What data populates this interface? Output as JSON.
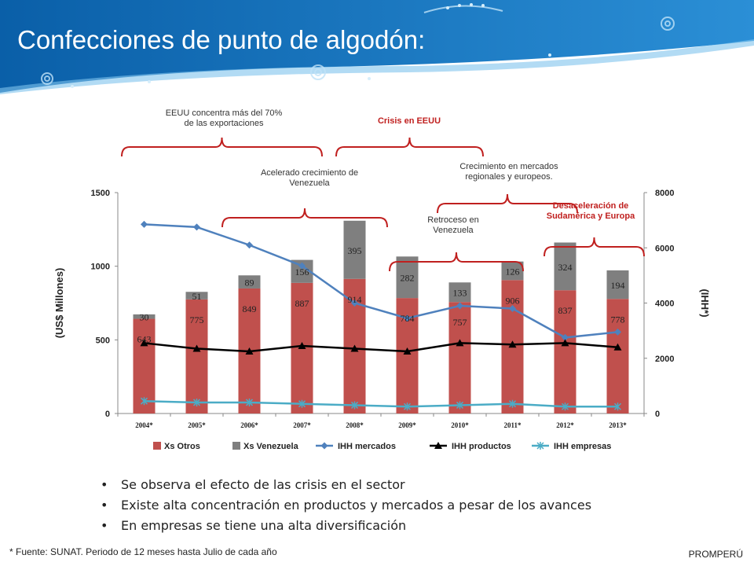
{
  "header": {
    "title": "Confecciones de punto de algodón:"
  },
  "chart_data": {
    "type": "bar",
    "categories": [
      "2004*",
      "2005*",
      "2006*",
      "2007*",
      "2008*",
      "2009*",
      "2010*",
      "2011*",
      "2012*",
      "2013*"
    ],
    "series": [
      {
        "name": "Xs Otros",
        "kind": "bar",
        "axis": "left",
        "values": [
          643,
          775,
          849,
          887,
          914,
          784,
          757,
          906,
          837,
          778
        ]
      },
      {
        "name": "Xs Venezuela",
        "kind": "bar",
        "axis": "left",
        "values": [
          30,
          51,
          89,
          156,
          395,
          282,
          133,
          126,
          324,
          194
        ]
      },
      {
        "name": "IHH mercados",
        "kind": "line",
        "axis": "right",
        "values": [
          6850,
          6750,
          6100,
          5350,
          4000,
          3450,
          3900,
          3800,
          2750,
          2950
        ]
      },
      {
        "name": "IHH productos",
        "kind": "line",
        "axis": "right",
        "values": [
          2550,
          2350,
          2250,
          2450,
          2350,
          2250,
          2550,
          2500,
          2550,
          2400
        ]
      },
      {
        "name": "IHH empresas",
        "kind": "line",
        "axis": "right",
        "values": [
          450,
          400,
          400,
          350,
          300,
          250,
          300,
          350,
          250,
          250
        ]
      }
    ],
    "ylabel": "(US$ Millones)",
    "y2label": "(IHH*)",
    "ylim": [
      0,
      1500
    ],
    "y2lim": [
      0,
      8000
    ],
    "yticks": [
      "0",
      "500",
      "1000",
      "1500"
    ],
    "y2ticks": [
      "0",
      "2000",
      "4000",
      "6000",
      "8000"
    ],
    "legend_position": "bottom",
    "colors": {
      "Xs Otros": "#c0504d",
      "Xs Venezuela": "#7f7f7f",
      "IHH mercados": "#4f81bd",
      "IHH productos": "#000000",
      "IHH empresas": "#4bacc6",
      "bracket": "#c0201f"
    },
    "annotations": [
      {
        "text": "EEUU concentra más del 70%\nde las exportaciones",
        "color": "#333333",
        "bold": false
      },
      {
        "text": "Crisis en EEUU",
        "color": "#c0201f",
        "bold": true
      },
      {
        "text": "Acelerado crecimiento de\nVenezuela",
        "color": "#333333",
        "bold": false
      },
      {
        "text": "Crecimiento en mercados\nregionales y europeos.",
        "color": "#333333",
        "bold": false
      },
      {
        "text": "Retroceso en\nVenezuela",
        "color": "#333333",
        "bold": false
      },
      {
        "text": "Desaceleración de\nSudamérica y Europa",
        "color": "#c0201f",
        "bold": true
      }
    ]
  },
  "bullets": [
    "Se observa el efecto de las crisis en el sector",
    "Existe alta concentración en productos y mercados a pesar de los avances",
    "En empresas se tiene una alta diversificación"
  ],
  "footnote": "* Fuente: SUNAT.  Periodo de 12 meses hasta Julio de cada año",
  "brand": "PROMPERÚ"
}
